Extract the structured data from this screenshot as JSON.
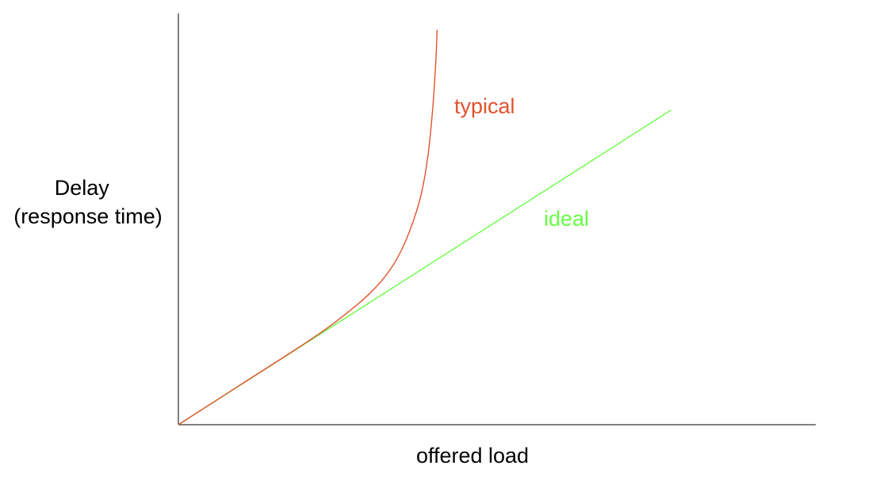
{
  "chart_data": {
    "type": "line",
    "title": "",
    "xlabel": "offered load",
    "ylabel": [
      "Delay",
      "(response time)"
    ],
    "xlim": [
      0,
      100
    ],
    "ylim": [
      0,
      100
    ],
    "grid": false,
    "legend": "none",
    "ticks": "none",
    "series": [
      {
        "name": "ideal",
        "color": "#66ff44",
        "x": [
          0,
          77.3
        ],
        "y": [
          0,
          76.8
        ]
      },
      {
        "name": "typical",
        "color": "#e0522d",
        "x": [
          0,
          10,
          20,
          25,
          30,
          33.3,
          35.7,
          37.9,
          39.1,
          39.9,
          40.4,
          40.6
        ],
        "y": [
          0,
          10,
          20,
          25.5,
          32,
          38,
          45,
          55,
          65,
          77,
          89,
          96.4
        ]
      }
    ]
  }
}
